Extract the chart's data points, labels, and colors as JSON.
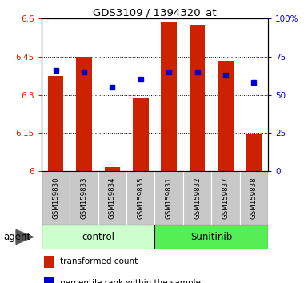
{
  "title": "GDS3109 / 1394320_at",
  "categories": [
    "GSM159830",
    "GSM159833",
    "GSM159834",
    "GSM159835",
    "GSM159831",
    "GSM159832",
    "GSM159837",
    "GSM159838"
  ],
  "bar_values": [
    6.375,
    6.45,
    6.015,
    6.285,
    6.585,
    6.575,
    6.435,
    6.145
  ],
  "percentile_values": [
    66,
    65,
    55,
    60,
    65,
    65,
    63,
    58
  ],
  "bar_color": "#cc2200",
  "percentile_color": "#0000cc",
  "bar_bottom": 6.0,
  "ylim_left": [
    6.0,
    6.6
  ],
  "ylim_right": [
    0,
    100
  ],
  "yticks_left": [
    6.0,
    6.15,
    6.3,
    6.45,
    6.6
  ],
  "yticks_right": [
    0,
    25,
    50,
    75,
    100
  ],
  "ytick_labels_left": [
    "6",
    "6.15",
    "6.3",
    "6.45",
    "6.6"
  ],
  "ytick_labels_right": [
    "0",
    "25",
    "50",
    "75",
    "100%"
  ],
  "groups": [
    {
      "label": "control",
      "indices": [
        0,
        1,
        2,
        3
      ],
      "color": "#ccffcc"
    },
    {
      "label": "Sunitinib",
      "indices": [
        4,
        5,
        6,
        7
      ],
      "color": "#55ee55"
    }
  ],
  "group_row_label": "agent",
  "legend_bar_label": "transformed count",
  "legend_pct_label": "percentile rank within the sample",
  "bar_width": 0.55,
  "tick_label_area_color": "#c8c8c8",
  "figsize": [
    3.85,
    3.54
  ],
  "dpi": 100
}
